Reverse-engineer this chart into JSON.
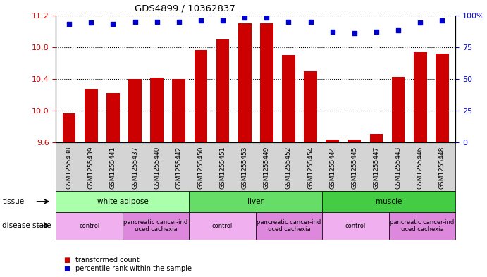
{
  "title": "GDS4899 / 10362837",
  "samples": [
    "GSM1255438",
    "GSM1255439",
    "GSM1255441",
    "GSM1255437",
    "GSM1255440",
    "GSM1255442",
    "GSM1255450",
    "GSM1255451",
    "GSM1255453",
    "GSM1255449",
    "GSM1255452",
    "GSM1255454",
    "GSM1255444",
    "GSM1255445",
    "GSM1255447",
    "GSM1255443",
    "GSM1255446",
    "GSM1255448"
  ],
  "bar_values": [
    9.97,
    10.28,
    10.22,
    10.4,
    10.42,
    10.4,
    10.76,
    10.9,
    11.1,
    11.1,
    10.7,
    10.5,
    9.64,
    9.64,
    9.71,
    10.43,
    10.74,
    10.72
  ],
  "dot_values": [
    93,
    94,
    93,
    95,
    95,
    95,
    96,
    96,
    98,
    98,
    95,
    95,
    87,
    86,
    87,
    88,
    94,
    96
  ],
  "ylim_left": [
    9.6,
    11.2
  ],
  "ylim_right": [
    0,
    100
  ],
  "yticks_left": [
    9.6,
    10.0,
    10.4,
    10.8,
    11.2
  ],
  "yticks_right": [
    0,
    25,
    50,
    75,
    100
  ],
  "bar_color": "#cc0000",
  "dot_color": "#0000cc",
  "background_color": "#ffffff",
  "plot_bg_color": "#ffffff",
  "tissue_groups": [
    {
      "label": "white adipose",
      "start": 0,
      "end": 6,
      "color": "#aaffaa"
    },
    {
      "label": "liver",
      "start": 6,
      "end": 12,
      "color": "#66dd66"
    },
    {
      "label": "muscle",
      "start": 12,
      "end": 18,
      "color": "#44cc44"
    }
  ],
  "disease_groups": [
    {
      "label": "control",
      "start": 0,
      "end": 3,
      "facecolor": "#f0b0f0"
    },
    {
      "label": "pancreatic cancer-ind\nuced cachexia",
      "start": 3,
      "end": 6,
      "facecolor": "#dd88dd"
    },
    {
      "label": "control",
      "start": 6,
      "end": 9,
      "facecolor": "#f0b0f0"
    },
    {
      "label": "pancreatic cancer-ind\nuced cachexia",
      "start": 9,
      "end": 12,
      "facecolor": "#dd88dd"
    },
    {
      "label": "control",
      "start": 12,
      "end": 15,
      "facecolor": "#f0b0f0"
    },
    {
      "label": "pancreatic cancer-ind\nuced cachexia",
      "start": 15,
      "end": 18,
      "facecolor": "#dd88dd"
    }
  ],
  "legend_items": [
    {
      "label": "transformed count",
      "color": "#cc0000"
    },
    {
      "label": "percentile rank within the sample",
      "color": "#0000cc"
    }
  ],
  "xtick_bg": "#d0d0d0"
}
